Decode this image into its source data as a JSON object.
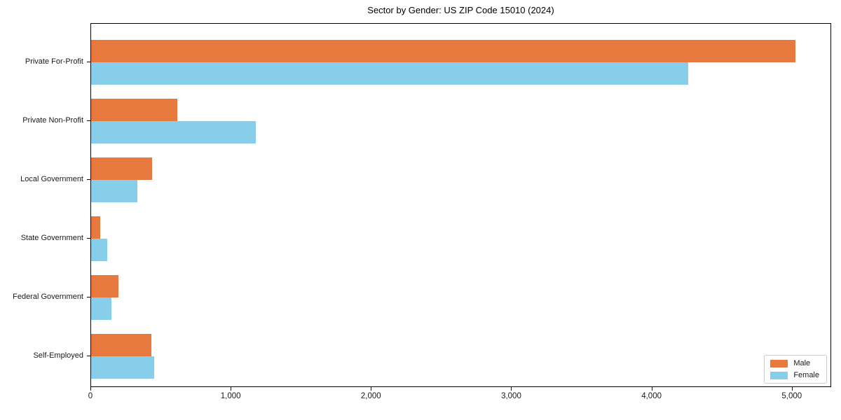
{
  "title": "Sector by Gender: US ZIP Code 15010 (2024)",
  "chart_data": {
    "type": "bar",
    "orientation": "horizontal",
    "title": "Sector by Gender: US ZIP Code 15010 (2024)",
    "categories": [
      "Private For-Profit",
      "Private Non-Profit",
      "Local Government",
      "State Government",
      "Federal Government",
      "Self-Employed"
    ],
    "series": [
      {
        "name": "Male",
        "color": "#e8793e",
        "values": [
          5030,
          614,
          434,
          67,
          197,
          430
        ]
      },
      {
        "name": "Female",
        "color": "#87ceeb",
        "values": [
          4265,
          1175,
          330,
          113,
          147,
          450
        ]
      }
    ],
    "xlabel": "",
    "ylabel": "",
    "xlim": [
      0,
      5281
    ],
    "x_ticks": [
      0,
      1000,
      2000,
      3000,
      4000,
      5000
    ],
    "x_tick_labels": [
      "0",
      "1,000",
      "2,000",
      "3,000",
      "4,000",
      "5,000"
    ],
    "grid": false,
    "legend": {
      "position": "lower-right",
      "entries": [
        "Male",
        "Female"
      ]
    },
    "axis_color": "#000000",
    "text_color": "#1a1a1a"
  }
}
